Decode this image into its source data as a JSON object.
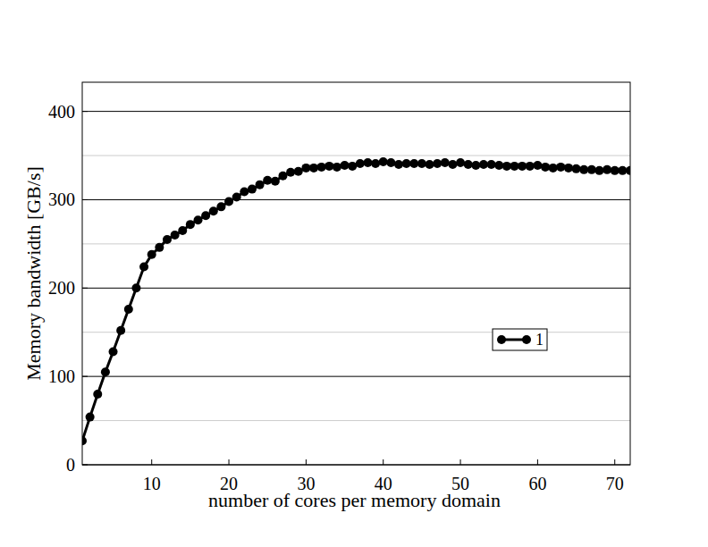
{
  "chart_data": {
    "type": "line",
    "x_label": "number of cores per memory domain",
    "y_label": "Memory bandwidth [GB/s]",
    "x": [
      1,
      2,
      3,
      4,
      5,
      6,
      7,
      8,
      9,
      10,
      11,
      12,
      13,
      14,
      15,
      16,
      17,
      18,
      19,
      20,
      21,
      22,
      23,
      24,
      25,
      26,
      27,
      28,
      29,
      30,
      31,
      32,
      33,
      34,
      35,
      36,
      37,
      38,
      39,
      40,
      41,
      42,
      43,
      44,
      45,
      46,
      47,
      48,
      49,
      50,
      51,
      52,
      53,
      54,
      55,
      56,
      57,
      58,
      59,
      60,
      61,
      62,
      63,
      64,
      65,
      66,
      67,
      68,
      69,
      70,
      71,
      72
    ],
    "series": [
      {
        "name": "1",
        "color": "#000000",
        "marker": "circle",
        "line_style": "solid",
        "values": [
          27,
          54,
          80,
          105,
          128,
          152,
          176,
          200,
          224,
          238,
          246,
          255,
          260,
          265,
          272,
          277,
          282,
          287,
          292,
          298,
          303,
          309,
          312,
          317,
          322,
          321,
          327,
          331,
          332,
          336,
          336,
          337,
          338,
          337,
          339,
          338,
          341,
          342,
          341,
          343,
          342,
          340,
          341,
          341,
          341,
          340,
          341,
          342,
          340,
          342,
          340,
          339,
          340,
          340,
          339,
          338,
          338,
          338,
          338,
          339,
          337,
          336,
          337,
          336,
          335,
          334,
          334,
          333,
          334,
          333,
          333,
          333
        ]
      }
    ],
    "xlim": [
      1,
      72
    ],
    "xticks": [
      10,
      20,
      30,
      40,
      50,
      60,
      70
    ],
    "ylim": [
      0,
      433
    ],
    "yticks": [
      0,
      100,
      200,
      300,
      400
    ],
    "grid": true,
    "legend": "right"
  }
}
